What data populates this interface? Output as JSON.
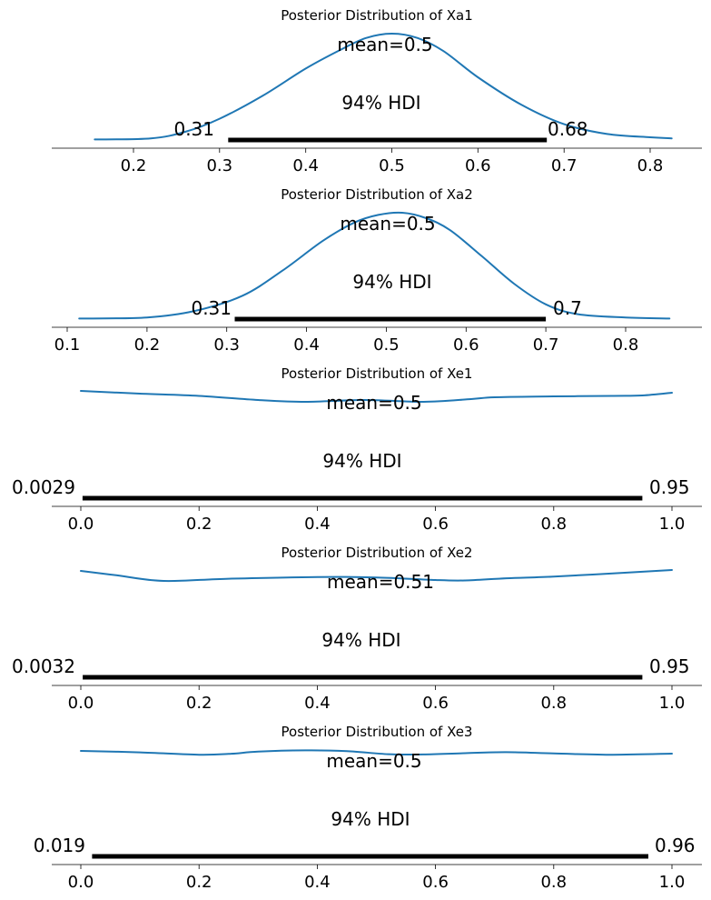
{
  "colors": {
    "density_line": "#1f77b4",
    "hdi_bar": "#000000",
    "axis": "#000000",
    "background": "#ffffff"
  },
  "chart_data": [
    {
      "type": "line",
      "title": "Posterior Distribution of Xa1",
      "mean_label": "mean=0.5",
      "hdi_label": "94% HDI",
      "hdi_low_label": "0.31",
      "hdi_high_label": "0.68",
      "hdi": [
        0.31,
        0.68
      ],
      "xlim": [
        0.12,
        0.85
      ],
      "x_ticks": [
        0.2,
        0.3,
        0.4,
        0.5,
        0.6,
        0.7,
        0.8
      ],
      "x_tick_labels": [
        "0.2",
        "0.3",
        "0.4",
        "0.5",
        "0.6",
        "0.7",
        "0.8"
      ],
      "density_scale": "relative 0-1",
      "x": [
        0.155,
        0.22,
        0.26,
        0.3,
        0.35,
        0.4,
        0.44,
        0.47,
        0.5,
        0.53,
        0.56,
        0.6,
        0.65,
        0.7,
        0.75,
        0.8,
        0.825
      ],
      "y": [
        0.03,
        0.04,
        0.1,
        0.22,
        0.43,
        0.68,
        0.85,
        0.96,
        1.0,
        0.96,
        0.84,
        0.6,
        0.35,
        0.17,
        0.08,
        0.05,
        0.04
      ]
    },
    {
      "type": "line",
      "title": "Posterior Distribution of Xa2",
      "mean_label": "mean=0.5",
      "hdi_label": "94% HDI",
      "hdi_low_label": "0.31",
      "hdi_high_label": "0.7",
      "hdi": [
        0.31,
        0.7
      ],
      "xlim": [
        0.08,
        0.9
      ],
      "x_ticks": [
        0.1,
        0.2,
        0.3,
        0.4,
        0.5,
        0.6,
        0.7,
        0.8
      ],
      "x_tick_labels": [
        "0.1",
        "0.2",
        "0.3",
        "0.4",
        "0.5",
        "0.6",
        "0.7",
        "0.8"
      ],
      "density_scale": "relative 0-1",
      "x": [
        0.115,
        0.2,
        0.26,
        0.32,
        0.37,
        0.42,
        0.46,
        0.49,
        0.52,
        0.55,
        0.58,
        0.62,
        0.66,
        0.7,
        0.74,
        0.8,
        0.855
      ],
      "y": [
        0.03,
        0.04,
        0.1,
        0.24,
        0.47,
        0.74,
        0.91,
        0.98,
        1.0,
        0.95,
        0.84,
        0.6,
        0.35,
        0.16,
        0.07,
        0.04,
        0.03
      ]
    },
    {
      "type": "line",
      "title": "Posterior Distribution of Xe1",
      "mean_label": "mean=0.5",
      "hdi_label": "94% HDI",
      "hdi_low_label": "0.0029",
      "hdi_high_label": "0.95",
      "hdi": [
        0.0029,
        0.95
      ],
      "xlim": [
        -0.05,
        1.05
      ],
      "x_ticks": [
        0.0,
        0.2,
        0.4,
        0.6,
        0.8,
        1.0
      ],
      "x_tick_labels": [
        "0.0",
        "0.2",
        "0.4",
        "0.6",
        "0.8",
        "1.0"
      ],
      "density_scale": "relative 0-1",
      "x": [
        0.0,
        0.1,
        0.2,
        0.3,
        0.38,
        0.48,
        0.58,
        0.66,
        0.7,
        0.8,
        0.9,
        0.95,
        1.0
      ],
      "y": [
        1.0,
        0.88,
        0.78,
        0.6,
        0.52,
        0.6,
        0.52,
        0.64,
        0.72,
        0.76,
        0.78,
        0.8,
        0.92
      ]
    },
    {
      "type": "line",
      "title": "Posterior Distribution of Xe2",
      "mean_label": "mean=0.51",
      "hdi_label": "94% HDI",
      "hdi_low_label": "0.0032",
      "hdi_high_label": "0.95",
      "hdi": [
        0.0032,
        0.95
      ],
      "xlim": [
        -0.05,
        1.05
      ],
      "x_ticks": [
        0.0,
        0.2,
        0.4,
        0.6,
        0.8,
        1.0
      ],
      "x_tick_labels": [
        "0.0",
        "0.2",
        "0.4",
        "0.6",
        "0.8",
        "1.0"
      ],
      "density_scale": "relative 0-1",
      "x": [
        0.0,
        0.06,
        0.14,
        0.25,
        0.4,
        0.5,
        0.6,
        0.65,
        0.72,
        0.8,
        0.9,
        1.0
      ],
      "y": [
        0.96,
        0.76,
        0.5,
        0.6,
        0.68,
        0.66,
        0.54,
        0.52,
        0.62,
        0.7,
        0.84,
        1.0
      ]
    },
    {
      "type": "line",
      "title": "Posterior Distribution of Xe3",
      "mean_label": "mean=0.5",
      "hdi_label": "94% HDI",
      "hdi_low_label": "0.019",
      "hdi_high_label": "0.96",
      "hdi": [
        0.019,
        0.96
      ],
      "xlim": [
        -0.05,
        1.05
      ],
      "x_ticks": [
        0.0,
        0.2,
        0.4,
        0.6,
        0.8,
        1.0
      ],
      "x_tick_labels": [
        "0.0",
        "0.2",
        "0.4",
        "0.6",
        "0.8",
        "1.0"
      ],
      "density_scale": "relative 0-1",
      "x": [
        0.0,
        0.1,
        0.2,
        0.25,
        0.3,
        0.38,
        0.45,
        0.52,
        0.58,
        0.65,
        0.72,
        0.8,
        0.9,
        1.0
      ],
      "y": [
        0.86,
        0.74,
        0.56,
        0.62,
        0.8,
        0.9,
        0.84,
        0.6,
        0.58,
        0.68,
        0.76,
        0.66,
        0.56,
        0.64
      ]
    }
  ]
}
